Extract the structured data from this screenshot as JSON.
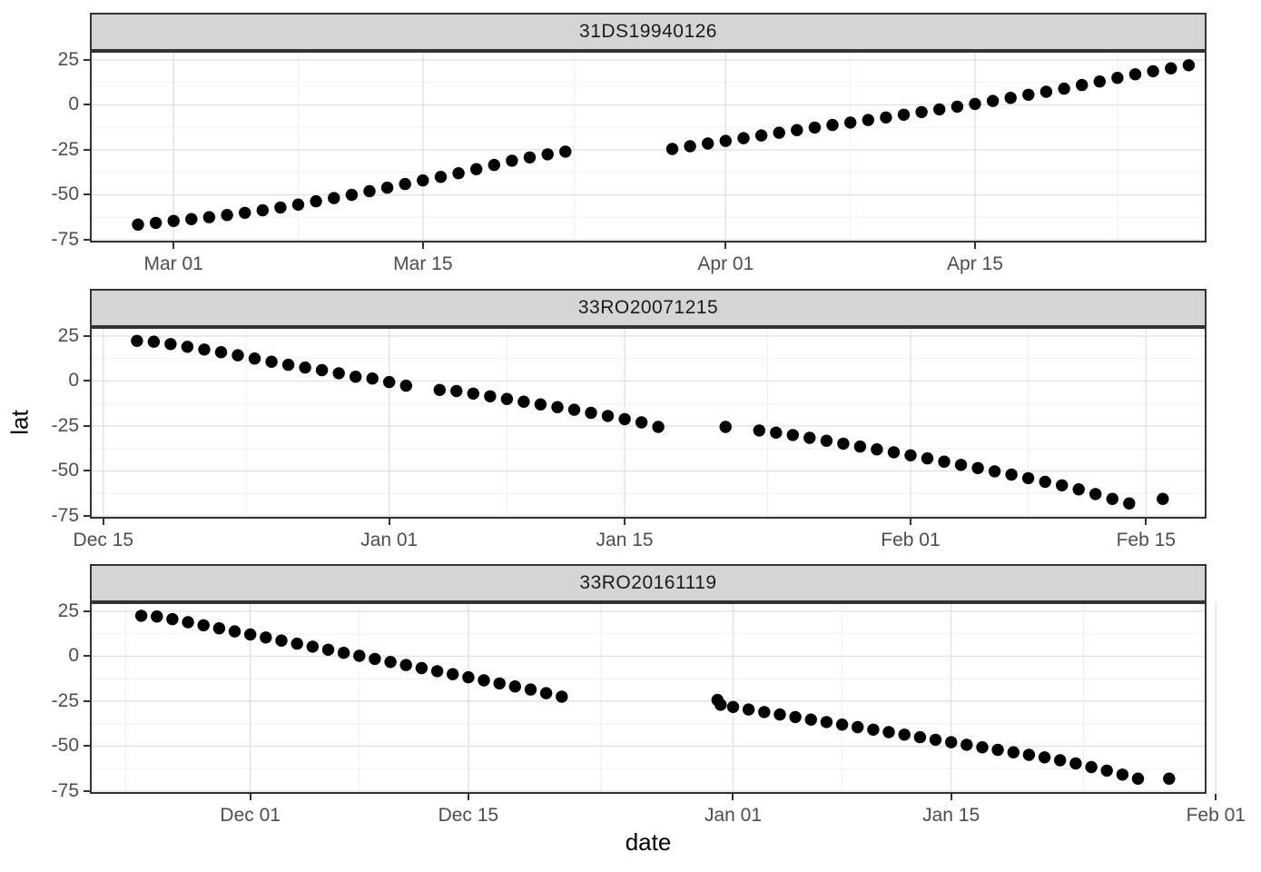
{
  "figure": {
    "y_axis_title": "lat",
    "x_axis_title": "date"
  },
  "axes": {
    "y_ticks": [
      25,
      0,
      -25,
      -50,
      -75
    ],
    "y_minor_ticks": [
      12.5,
      -12.5,
      -37.5,
      -62.5
    ],
    "ylim": [
      -76.5,
      30
    ]
  },
  "style": {
    "strip_bg": "#d5d5d5",
    "strip_text": "#1a1a1a",
    "panel_bg": "#ffffff",
    "panel_border": "#333333",
    "grid_major": "#e2e2e2",
    "grid_minor": "#f0f0f0",
    "tick_label_color": "#4d4d4d",
    "tick_mark_color": "#333333",
    "point_color": "#000000"
  },
  "chart_data": [
    {
      "type": "scatter",
      "facet_label": "31DS19940126",
      "xlabel": "date",
      "ylabel": "lat",
      "grid": true,
      "x_domain_days": [
        -4.7,
        58.0
      ],
      "x_ticks": [
        {
          "day": 0,
          "label": "Mar 01"
        },
        {
          "day": 14,
          "label": "Mar 15"
        },
        {
          "day": 31,
          "label": "Apr 01"
        },
        {
          "day": 45,
          "label": "Apr 15"
        }
      ],
      "x_minor_days": [
        7,
        22.5,
        38,
        53
      ],
      "points": [
        [
          -2,
          -66.5
        ],
        [
          -1,
          -65.6
        ],
        [
          0,
          -64.5
        ],
        [
          1,
          -63.5
        ],
        [
          2,
          -62.4
        ],
        [
          3,
          -61.2
        ],
        [
          4,
          -60
        ],
        [
          5,
          -58.6
        ],
        [
          6,
          -57
        ],
        [
          7,
          -55.4
        ],
        [
          8,
          -53.6
        ],
        [
          9,
          -51.8
        ],
        [
          10,
          -50
        ],
        [
          11,
          -48
        ],
        [
          12,
          -46
        ],
        [
          13,
          -44
        ],
        [
          14,
          -42
        ],
        [
          15,
          -40
        ],
        [
          16,
          -38
        ],
        [
          17,
          -35.7
        ],
        [
          18,
          -33.4
        ],
        [
          19,
          -31
        ],
        [
          20,
          -29.2
        ],
        [
          21,
          -27.5
        ],
        [
          22,
          -26
        ],
        [
          28,
          -24.5
        ],
        [
          29,
          -23
        ],
        [
          30,
          -21.5
        ],
        [
          31,
          -20
        ],
        [
          32,
          -18.5
        ],
        [
          33,
          -17
        ],
        [
          34,
          -15.5
        ],
        [
          35,
          -14
        ],
        [
          36,
          -12.6
        ],
        [
          37,
          -11.2
        ],
        [
          38,
          -9.8
        ],
        [
          39,
          -8.4
        ],
        [
          40,
          -7
        ],
        [
          41,
          -5.5
        ],
        [
          42,
          -4
        ],
        [
          43,
          -2.5
        ],
        [
          44,
          -1
        ],
        [
          45,
          0.5
        ],
        [
          46,
          2.2
        ],
        [
          47,
          3.9
        ],
        [
          48,
          5.6
        ],
        [
          49,
          7.3
        ],
        [
          50,
          9
        ],
        [
          51,
          11
        ],
        [
          52,
          13
        ],
        [
          53,
          15
        ],
        [
          54,
          17
        ],
        [
          55,
          18.7
        ],
        [
          56,
          20.3
        ],
        [
          57,
          22
        ]
      ]
    },
    {
      "type": "scatter",
      "facet_label": "33RO20071215",
      "xlabel": "date",
      "ylabel": "lat",
      "grid": true,
      "x_domain_days": [
        -0.8,
        65.6
      ],
      "x_ticks": [
        {
          "day": 0,
          "label": "Dec 15"
        },
        {
          "day": 17,
          "label": "Jan 01"
        },
        {
          "day": 31,
          "label": "Jan 15"
        },
        {
          "day": 48,
          "label": "Feb 01"
        },
        {
          "day": 62,
          "label": "Feb 15"
        }
      ],
      "x_minor_days": [
        8.5,
        24,
        39.5,
        55
      ],
      "points": [
        [
          2,
          22.3
        ],
        [
          3,
          21.8
        ],
        [
          4,
          20.5
        ],
        [
          5,
          19
        ],
        [
          6,
          17.5
        ],
        [
          7,
          16
        ],
        [
          8,
          14.3
        ],
        [
          9,
          12.5
        ],
        [
          10,
          10.7
        ],
        [
          11,
          9
        ],
        [
          12,
          7.5
        ],
        [
          13,
          6
        ],
        [
          14,
          4.3
        ],
        [
          15,
          2.4
        ],
        [
          16,
          1.4
        ],
        [
          17,
          -0.6
        ],
        [
          18,
          -2.6
        ],
        [
          20,
          -5
        ],
        [
          21,
          -5.6
        ],
        [
          22,
          -7
        ],
        [
          23,
          -8.5
        ],
        [
          24,
          -10
        ],
        [
          25,
          -11.5
        ],
        [
          26,
          -13
        ],
        [
          27,
          -14.5
        ],
        [
          28,
          -16
        ],
        [
          29,
          -17.7
        ],
        [
          30,
          -19.4
        ],
        [
          31,
          -21.2
        ],
        [
          32,
          -23
        ],
        [
          33,
          -25.5
        ],
        [
          37,
          -25.5
        ],
        [
          39,
          -27.5
        ],
        [
          40,
          -28.7
        ],
        [
          41,
          -30
        ],
        [
          42,
          -31.6
        ],
        [
          43,
          -33.2
        ],
        [
          44,
          -34.8
        ],
        [
          45,
          -36.4
        ],
        [
          46,
          -38
        ],
        [
          47,
          -39.6
        ],
        [
          48,
          -41.3
        ],
        [
          49,
          -43
        ],
        [
          50,
          -44.8
        ],
        [
          51,
          -46.6
        ],
        [
          52,
          -48.4
        ],
        [
          53,
          -50.2
        ],
        [
          54,
          -52
        ],
        [
          55,
          -54
        ],
        [
          56,
          -56
        ],
        [
          57,
          -58
        ],
        [
          58,
          -60.2
        ],
        [
          59,
          -62.8
        ],
        [
          60,
          -65.5
        ],
        [
          61,
          -68
        ],
        [
          63,
          -65.5
        ]
      ]
    },
    {
      "type": "scatter",
      "facet_label": "33RO20161119",
      "xlabel": "date",
      "ylabel": "lat",
      "grid": true,
      "x_domain_days": [
        -10.3,
        61.4
      ],
      "x_ticks": [
        {
          "day": 0,
          "label": "Dec 01"
        },
        {
          "day": 14,
          "label": "Dec 15"
        },
        {
          "day": 31,
          "label": "Jan 01"
        },
        {
          "day": 45,
          "label": "Jan 15"
        },
        {
          "day": 62,
          "label": "Feb 01"
        }
      ],
      "x_minor_days": [
        -8,
        7,
        22.5,
        38,
        53.5
      ],
      "points": [
        [
          -7,
          22.5
        ],
        [
          -6,
          22.1
        ],
        [
          -5,
          20.6
        ],
        [
          -4,
          18.9
        ],
        [
          -3,
          17.2
        ],
        [
          -2,
          15.5
        ],
        [
          -1,
          13.8
        ],
        [
          0,
          12.1
        ],
        [
          1,
          10.4
        ],
        [
          2,
          8.7
        ],
        [
          3,
          7
        ],
        [
          4,
          5.3
        ],
        [
          5,
          3.6
        ],
        [
          6,
          1.9
        ],
        [
          7,
          0.2
        ],
        [
          8,
          -1.5
        ],
        [
          9,
          -3.2
        ],
        [
          10,
          -4.9
        ],
        [
          11,
          -6.6
        ],
        [
          12,
          -8.3
        ],
        [
          13,
          -10
        ],
        [
          14,
          -11.7
        ],
        [
          15,
          -13.4
        ],
        [
          16,
          -15.1
        ],
        [
          17,
          -16.8
        ],
        [
          18,
          -18.5
        ],
        [
          19,
          -20.5
        ],
        [
          20,
          -22.5
        ],
        [
          30,
          -24.3
        ],
        [
          30.2,
          -27
        ],
        [
          31,
          -28.2
        ],
        [
          32,
          -29.6
        ],
        [
          33,
          -31
        ],
        [
          34,
          -32.4
        ],
        [
          35,
          -33.8
        ],
        [
          36,
          -35.2
        ],
        [
          37,
          -36.6
        ],
        [
          38,
          -38
        ],
        [
          39,
          -39.4
        ],
        [
          40,
          -40.8
        ],
        [
          41,
          -42.2
        ],
        [
          42,
          -43.6
        ],
        [
          43,
          -45
        ],
        [
          44,
          -46.4
        ],
        [
          45,
          -47.8
        ],
        [
          46,
          -49.2
        ],
        [
          47,
          -50.6
        ],
        [
          48,
          -52
        ],
        [
          49,
          -53.4
        ],
        [
          50,
          -54.8
        ],
        [
          51,
          -56.2
        ],
        [
          52,
          -57.8
        ],
        [
          53,
          -59.6
        ],
        [
          54,
          -61.6
        ],
        [
          55,
          -63.6
        ],
        [
          56,
          -65.8
        ],
        [
          57,
          -68
        ],
        [
          59,
          -68
        ]
      ]
    }
  ]
}
